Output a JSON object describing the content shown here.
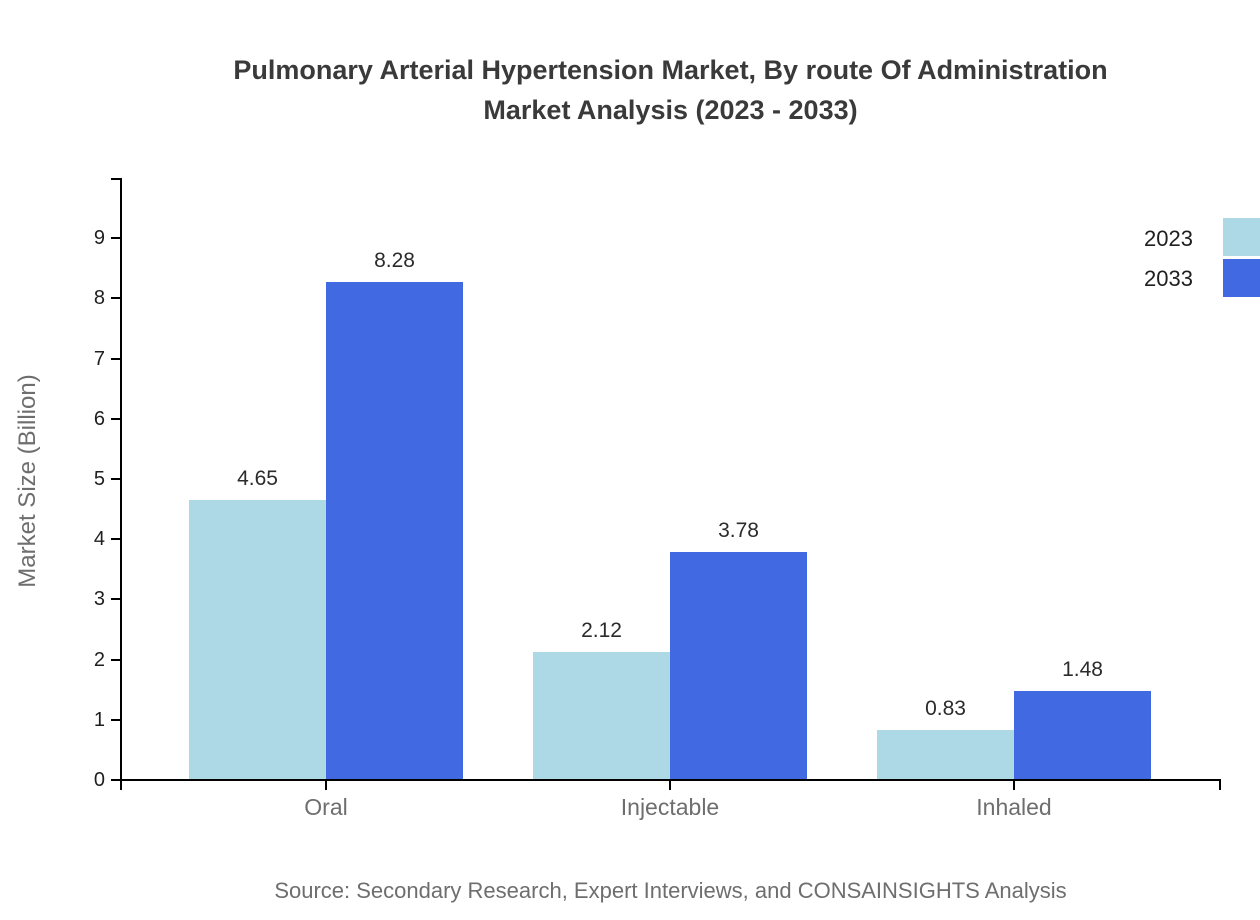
{
  "title": {
    "line1": "Pulmonary Arterial Hypertension Market, By route Of Administration",
    "line2": "Market Analysis (2023 - 2033)"
  },
  "source_note": "Source: Secondary Research, Expert Interviews, and CONSAINSIGHTS Analysis",
  "chart_data": {
    "type": "bar",
    "title": "Pulmonary Arterial Hypertension Market, By route Of Administration Market Analysis (2023 - 2033)",
    "categories": [
      "Oral",
      "Injectable",
      "Inhaled"
    ],
    "series": [
      {
        "name": "2023",
        "color": "#ADD8E6",
        "values": [
          4.65,
          2.12,
          0.83
        ]
      },
      {
        "name": "2033",
        "color": "#4169E1",
        "values": [
          8.28,
          3.78,
          1.48
        ]
      }
    ],
    "value_labels": [
      "4.65",
      "8.28",
      "2.12",
      "3.78",
      "0.83",
      "1.48"
    ],
    "xlabel": "",
    "ylabel": "Market Size (Billion)",
    "ylim": [
      0,
      10
    ],
    "y_ticks": [
      0,
      1,
      2,
      3,
      4,
      5,
      6,
      7,
      8,
      9
    ],
    "grid": false,
    "legend_position": "upper-right"
  },
  "colors": {
    "series_2023": "#ADD8E6",
    "series_2033": "#4169E1",
    "title_text": "#3a3a3a",
    "axis_text": "#1f1f1f",
    "muted_text": "#6e6e6e",
    "axis_line": "#000000"
  }
}
